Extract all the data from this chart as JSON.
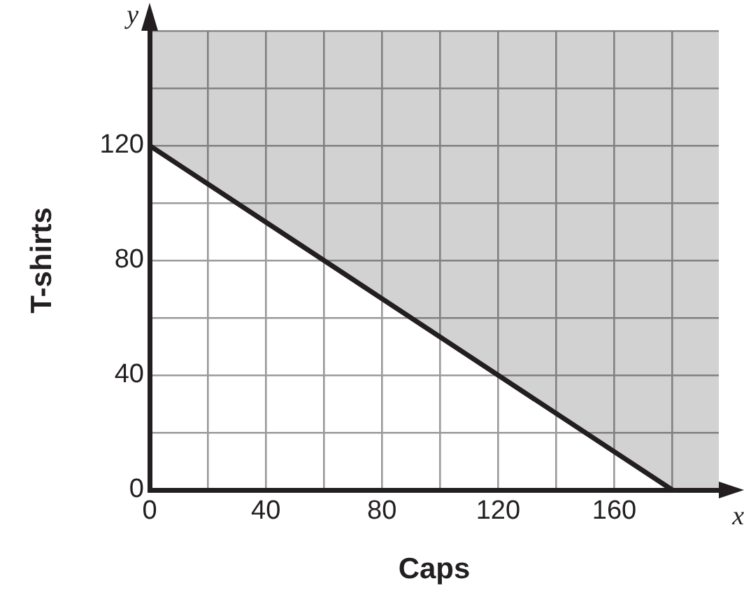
{
  "chart_data": {
    "type": "line",
    "xlabel": "Caps",
    "ylabel": "T-shirts",
    "annotations": [
      "x",
      "y"
    ],
    "x": [
      0,
      180,
      196
    ],
    "series": [
      {
        "color": "#231f20",
        "values": [
          120,
          0,
          null
        ],
        "lower": [
          120,
          0,
          0
        ],
        "upper": [
          160,
          160,
          160
        ]
      }
    ],
    "xlim": [
      0,
      196
    ],
    "xticks": [
      0,
      {
        "value": 20,
        "label": null
      },
      40,
      {
        "value": 60,
        "label": null
      },
      80,
      {
        "value": 100,
        "label": null
      },
      120,
      {
        "value": 140,
        "label": null
      },
      160,
      {
        "value": 180,
        "label": null
      }
    ],
    "ylim": [
      0,
      160
    ],
    "yticks": [
      0,
      {
        "value": 20,
        "label": null
      },
      40,
      {
        "value": 60,
        "label": null
      },
      80,
      {
        "value": 100,
        "label": null
      },
      120,
      {
        "value": 140,
        "label": null
      },
      {
        "value": 160,
        "label": null
      }
    ],
    "grid": true,
    "marker": "none",
    "line_style": "solid"
  }
}
